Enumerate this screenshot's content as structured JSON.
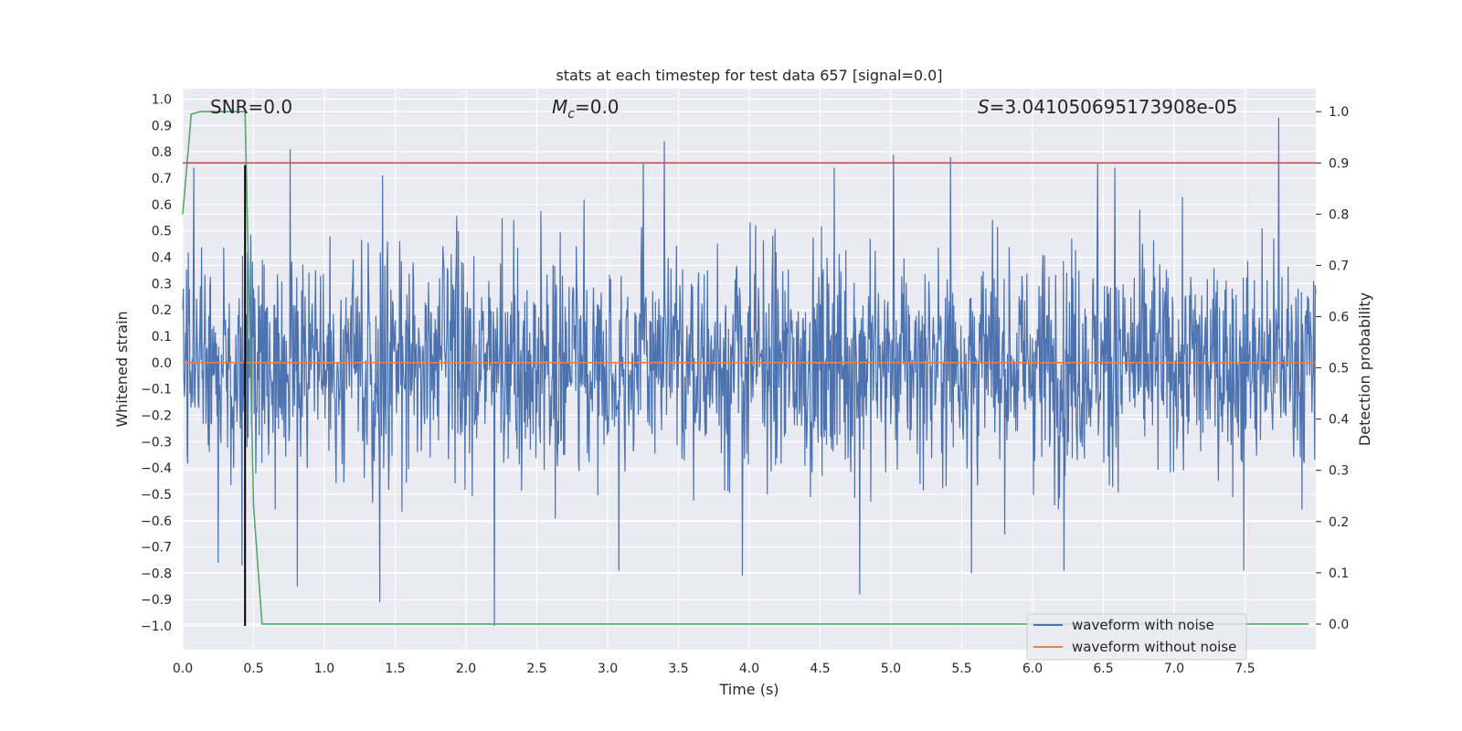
{
  "chart_data": {
    "type": "line",
    "title": "stats at each timestep for test data 657 [signal=0.0]",
    "xlabel": "Time (s)",
    "ylabel": "Whitened strain",
    "ylabel_right": "Detection probability",
    "xlim": [
      0.0,
      8.0
    ],
    "ylim": [
      -1.09,
      1.04
    ],
    "ylim_right": [
      -0.05,
      1.045
    ],
    "x_ticks": [
      0.0,
      0.5,
      1.0,
      1.5,
      2.0,
      2.5,
      3.0,
      3.5,
      4.0,
      4.5,
      5.0,
      5.5,
      6.0,
      6.5,
      7.0,
      7.5
    ],
    "x_tick_labels": [
      "0.0",
      "0.5",
      "1.0",
      "1.5",
      "2.0",
      "2.5",
      "3.0",
      "3.5",
      "4.0",
      "4.5",
      "5.0",
      "5.5",
      "6.0",
      "6.5",
      "7.0",
      "7.5"
    ],
    "y_ticks": [
      1.0,
      0.9,
      0.8,
      0.7,
      0.6,
      0.5,
      0.4,
      0.3,
      0.2,
      0.1,
      0.0,
      -0.1,
      -0.2,
      -0.3,
      -0.4,
      -0.5,
      -0.6,
      -0.7,
      -0.8,
      -0.9,
      -1.0
    ],
    "y_tick_labels": [
      "1.0",
      "0.9",
      "0.8",
      "0.7",
      "0.6",
      "0.5",
      "0.4",
      "0.3",
      "0.2",
      "0.1",
      "0.0",
      "−0.1",
      "−0.2",
      "−0.3",
      "−0.4",
      "−0.5",
      "−0.6",
      "−0.7",
      "−0.8",
      "−0.9",
      "−1.0"
    ],
    "y_ticks_right": [
      1.0,
      0.9,
      0.8,
      0.7,
      0.6,
      0.5,
      0.4,
      0.3,
      0.2,
      0.1,
      0.0
    ],
    "y_tick_labels_right": [
      "1.0",
      "0.9",
      "0.8",
      "0.7",
      "0.6",
      "0.5",
      "0.4",
      "0.3",
      "0.2",
      "0.1",
      "0.0"
    ],
    "annotations": {
      "snr": "SNR=0.0",
      "mc_symbol": "M",
      "mc_sub": "c",
      "mc_value": "=0.0",
      "s_symbol": "S",
      "s_value": "=3.041050695173908e-05"
    },
    "legend": {
      "placement": "lower-right",
      "entries": [
        {
          "label": "waveform with noise",
          "color": "#4c72b0"
        },
        {
          "label": "waveform without noise",
          "color": "#dd8452"
        }
      ]
    },
    "series": [
      {
        "name": "waveform with noise",
        "color": "#4c72b0",
        "axis": "left",
        "noise": {
          "x_range": [
            0.0,
            8.0
          ],
          "samples": 2048,
          "typical_amplitude": 0.38,
          "peaks": [
            {
              "x": 0.08,
              "y": 0.74
            },
            {
              "x": 0.76,
              "y": 0.81
            },
            {
              "x": 1.41,
              "y": 0.71
            },
            {
              "x": 3.25,
              "y": 0.76
            },
            {
              "x": 3.4,
              "y": 0.84
            },
            {
              "x": 4.6,
              "y": 0.74
            },
            {
              "x": 5.02,
              "y": 0.79
            },
            {
              "x": 5.42,
              "y": 0.78
            },
            {
              "x": 6.46,
              "y": 0.76
            },
            {
              "x": 6.58,
              "y": 0.74
            },
            {
              "x": 7.74,
              "y": 0.93
            }
          ],
          "troughs": [
            {
              "x": 0.25,
              "y": -0.76
            },
            {
              "x": 0.42,
              "y": -0.77
            },
            {
              "x": 0.81,
              "y": -0.85
            },
            {
              "x": 1.39,
              "y": -0.91
            },
            {
              "x": 2.2,
              "y": -1.0
            },
            {
              "x": 3.08,
              "y": -0.79
            },
            {
              "x": 3.95,
              "y": -0.81
            },
            {
              "x": 4.78,
              "y": -0.88
            },
            {
              "x": 5.57,
              "y": -0.8
            },
            {
              "x": 6.22,
              "y": -0.79
            },
            {
              "x": 7.49,
              "y": -0.79
            }
          ]
        }
      },
      {
        "name": "waveform without noise",
        "color": "#dd8452",
        "axis": "left",
        "x": [
          0.0,
          8.0
        ],
        "y": [
          0.0,
          0.0
        ]
      },
      {
        "color": "#55a868",
        "axis": "right",
        "x": [
          0.0,
          0.06,
          0.12,
          0.44,
          0.5,
          0.56,
          7.95
        ],
        "y": [
          0.8,
          0.995,
          1.0,
          1.0,
          0.23,
          0.0,
          0.0
        ]
      },
      {
        "color": "#c44e52",
        "axis": "right",
        "x": [
          0.0,
          8.0
        ],
        "y": [
          0.9,
          0.9
        ]
      },
      {
        "color": "#000000",
        "axis": "left",
        "x": [
          0.44,
          0.44
        ],
        "y": [
          0.75,
          -1.0
        ]
      }
    ]
  }
}
